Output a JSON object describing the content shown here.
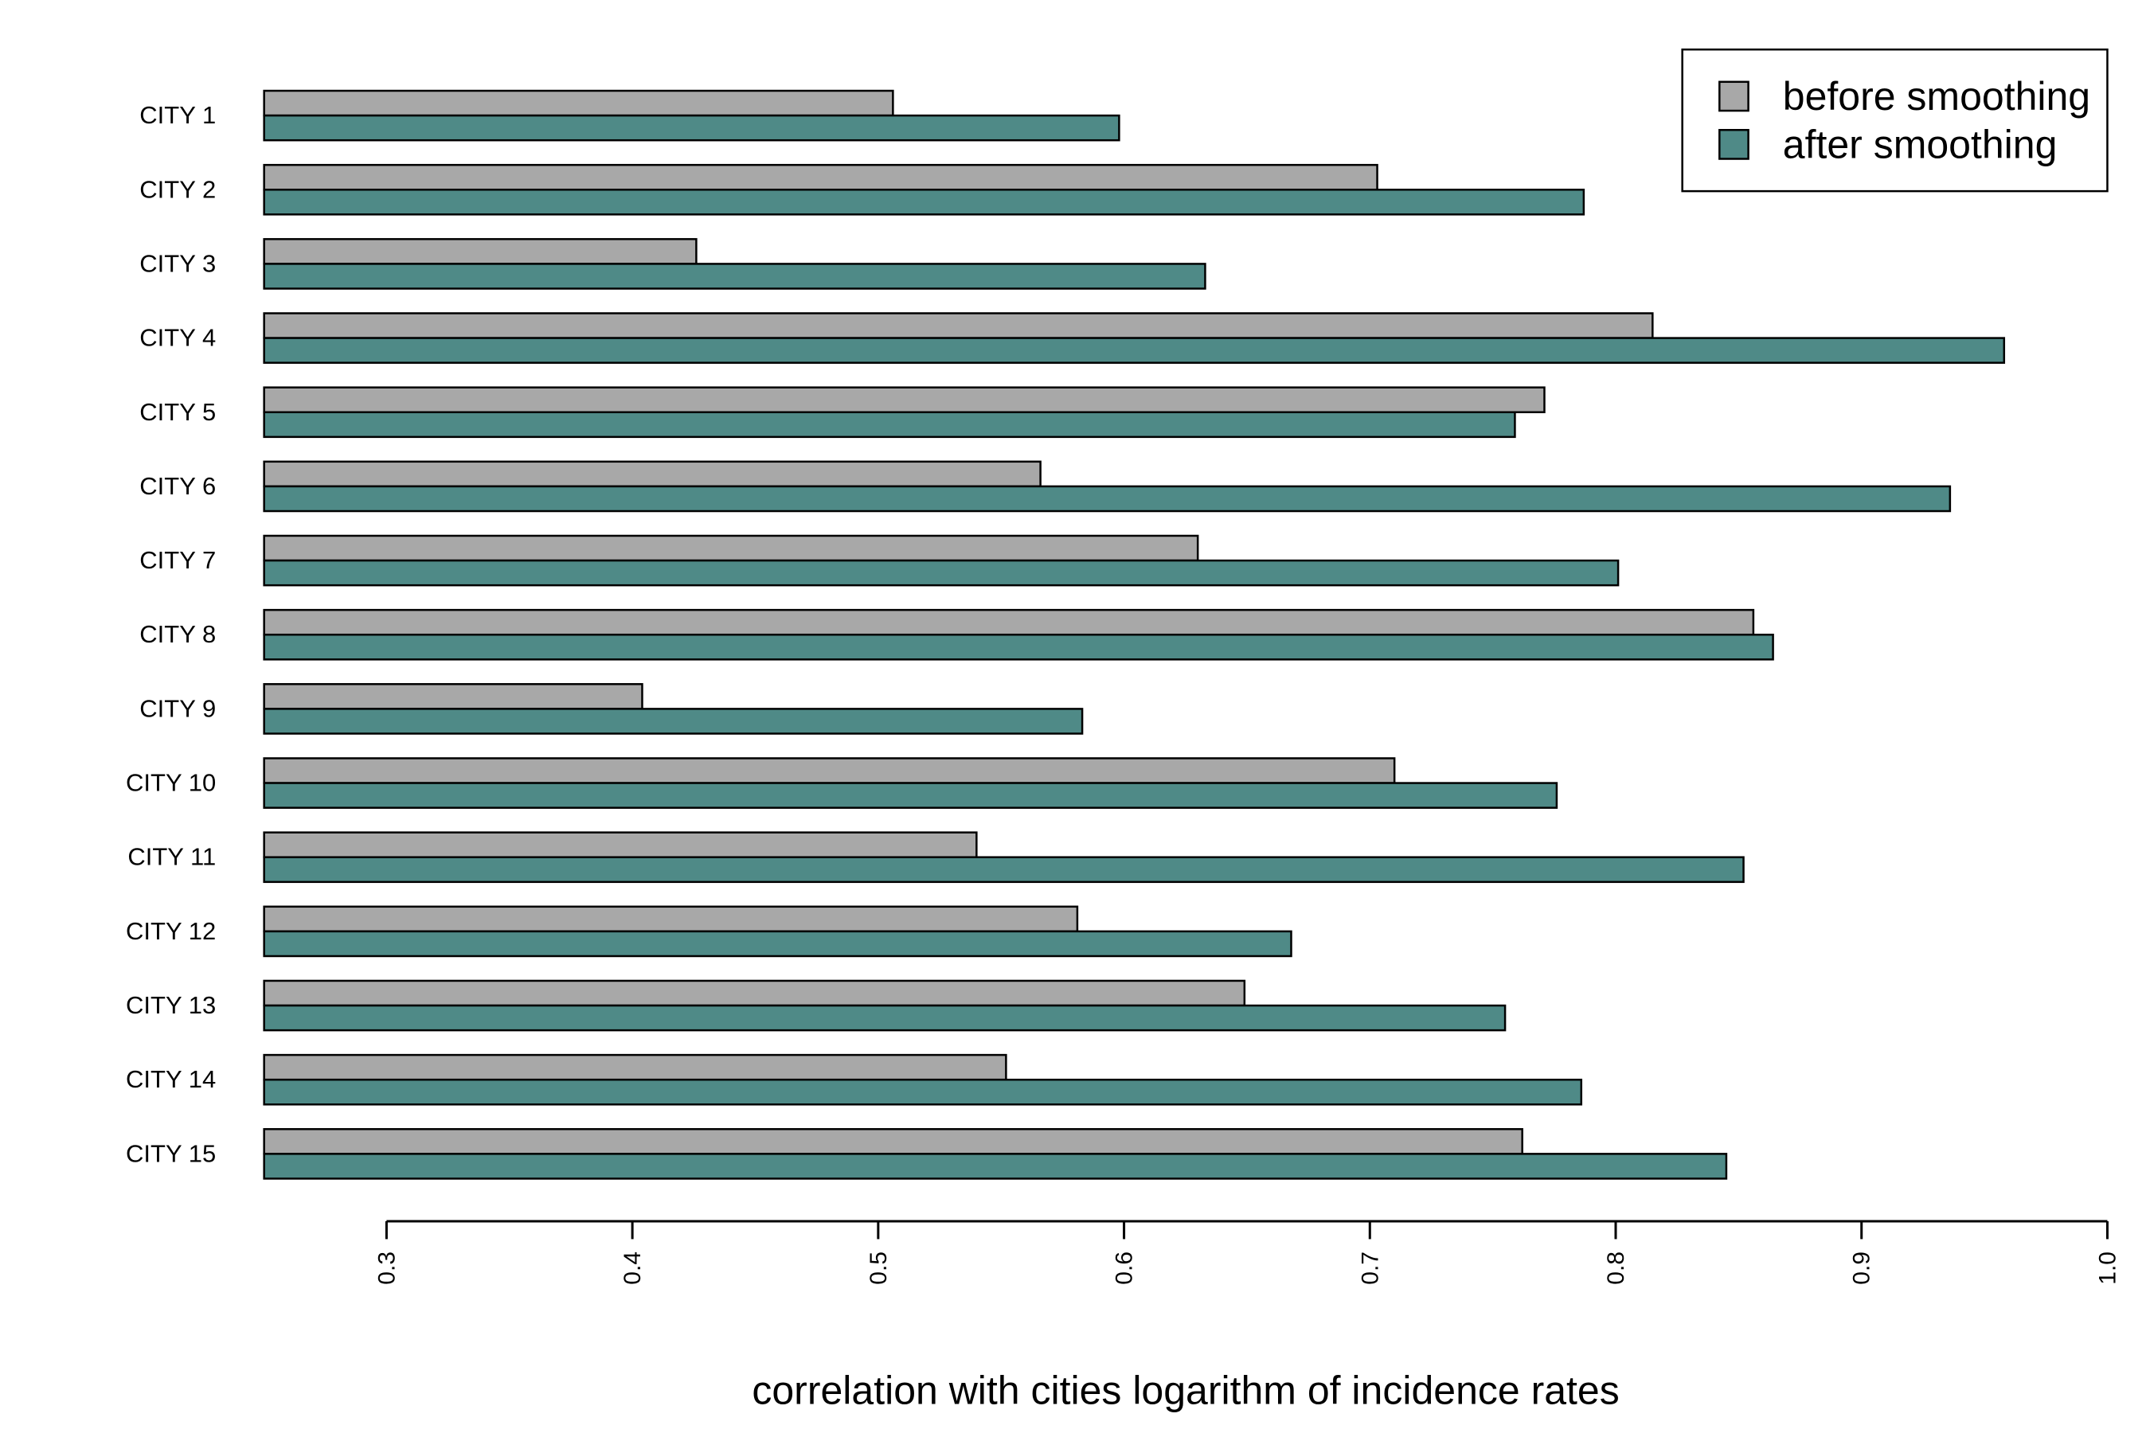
{
  "chart_data": {
    "type": "bar",
    "orientation": "horizontal",
    "categories": [
      "CITY 1",
      "CITY 2",
      "CITY 3",
      "CITY 4",
      "CITY 5",
      "CITY 6",
      "CITY 7",
      "CITY 8",
      "CITY 9",
      "CITY 10",
      "CITY 11",
      "CITY 12",
      "CITY 13",
      "CITY 14",
      "CITY 15"
    ],
    "series": [
      {
        "name": "before smoothing",
        "color": "#a8a8a8",
        "values": [
          0.506,
          0.703,
          0.426,
          0.815,
          0.771,
          0.566,
          0.63,
          0.856,
          0.404,
          0.71,
          0.54,
          0.581,
          0.649,
          0.552,
          0.762
        ]
      },
      {
        "name": "after smoothing",
        "color": "#4f8a87",
        "values": [
          0.598,
          0.787,
          0.633,
          0.958,
          0.759,
          0.936,
          0.801,
          0.864,
          0.583,
          0.776,
          0.852,
          0.668,
          0.755,
          0.786,
          0.845
        ]
      }
    ],
    "title": "",
    "xlabel": "correlation with cities logarithm of incidence rates",
    "ylabel": "",
    "xlim": [
      0.3,
      1.0
    ],
    "xticks": [
      0.3,
      0.4,
      0.5,
      0.6,
      0.7,
      0.8,
      0.9,
      1.0
    ],
    "tick_labels": [
      "0.3",
      "0.4",
      "0.5",
      "0.6",
      "0.7",
      "0.8",
      "0.9",
      "1.0"
    ],
    "grid": false,
    "legend_position": "top-right"
  }
}
